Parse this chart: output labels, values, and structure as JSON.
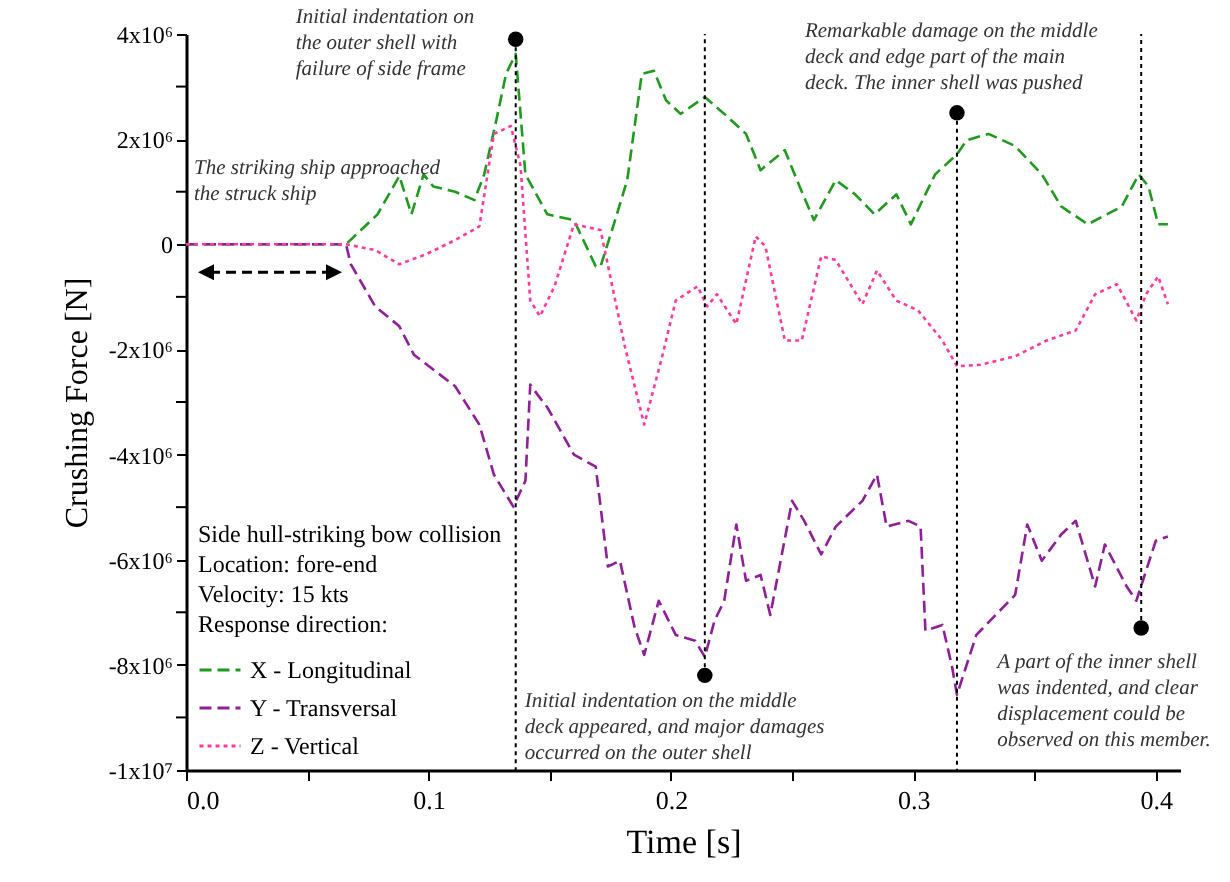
{
  "chart_data": {
    "type": "line",
    "xlabel": "Time [s]",
    "ylabel": "Crushing Force [N]",
    "legend_title": "Side hull-striking bow collision\nLocation: fore-end\nVelocity: 15 kts\nResponse direction:",
    "legend": "bottom left",
    "xlim": [
      0,
      0.41
    ],
    "xticks": [
      {
        "value": 0,
        "label": "0.0"
      },
      {
        "value": 0.05,
        "label": null
      },
      0.1,
      {
        "value": 0.15,
        "label": null
      },
      0.2,
      {
        "value": 0.25,
        "label": null
      },
      0.3,
      {
        "value": 0.35,
        "label": null
      },
      0.4
    ],
    "ylim": [
      -10000000,
      4000000
    ],
    "yticks": [
      {
        "value": 4000000,
        "label": "4x10⁶"
      },
      {
        "value": 3000000,
        "label": null
      },
      {
        "value": 2000000,
        "label": "2x10⁶"
      },
      {
        "value": 1000000,
        "label": null
      },
      0,
      {
        "value": -1000000,
        "label": null
      },
      {
        "value": -2000000,
        "label": "-2x10⁶"
      },
      {
        "value": -3000000,
        "label": null
      },
      {
        "value": -4000000,
        "label": "-4x10⁶"
      },
      {
        "value": -5000000,
        "label": null
      },
      {
        "value": -6000000,
        "label": "-6x10⁶"
      },
      {
        "value": -7000000,
        "label": null
      },
      {
        "value": -8000000,
        "label": "-8x10⁶"
      },
      {
        "value": -9000000,
        "label": null
      },
      {
        "value": -10000000,
        "label": "-1x10⁷"
      }
    ],
    "series": [
      {
        "name": "X - Longitudinal",
        "color": "#1f9a1f",
        "line_style": "dashed",
        "x": [
          0,
          0.066,
          0.079,
          0.088,
          0.093,
          0.098,
          0.102,
          0.111,
          0.119,
          0.123,
          0.128,
          0.132,
          0.136,
          0.14,
          0.149,
          0.16,
          0.169,
          0.171,
          0.177,
          0.182,
          0.188,
          0.193,
          0.198,
          0.204,
          0.214,
          0.223,
          0.231,
          0.237,
          0.247,
          0.252,
          0.259,
          0.268,
          0.276,
          0.284,
          0.293,
          0.299,
          0.309,
          0.318,
          0.322,
          0.331,
          0.342,
          0.353,
          0.361,
          0.372,
          0.386,
          0.393,
          0.397,
          0.401,
          0.405
        ],
        "values": [
          0,
          0,
          570000,
          1300000,
          570000,
          1330000,
          1100000,
          1000000,
          840000,
          1330000,
          2360000,
          3240000,
          3620000,
          1330000,
          570000,
          460000,
          -420000,
          -420000,
          460000,
          1220000,
          3240000,
          3300000,
          2740000,
          2480000,
          2800000,
          2440000,
          2100000,
          1410000,
          1790000,
          1220000,
          460000,
          1220000,
          950000,
          570000,
          950000,
          380000,
          1330000,
          1710000,
          1980000,
          2100000,
          1870000,
          1330000,
          720000,
          380000,
          720000,
          1330000,
          1100000,
          380000,
          380000
        ]
      },
      {
        "name": "Y - Transversal",
        "color": "#8e1f98",
        "line_style": "dashed",
        "x": [
          0,
          0.066,
          0.068,
          0.078,
          0.088,
          0.094,
          0.111,
          0.121,
          0.127,
          0.135,
          0.14,
          0.142,
          0.145,
          0.149,
          0.16,
          0.169,
          0.174,
          0.179,
          0.185,
          0.189,
          0.195,
          0.202,
          0.21,
          0.214,
          0.218,
          0.222,
          0.227,
          0.231,
          0.237,
          0.241,
          0.25,
          0.255,
          0.262,
          0.268,
          0.279,
          0.285,
          0.289,
          0.298,
          0.303,
          0.305,
          0.312,
          0.316,
          0.318,
          0.326,
          0.334,
          0.342,
          0.347,
          0.353,
          0.361,
          0.367,
          0.375,
          0.379,
          0.388,
          0.392,
          0.396,
          0.4,
          0.405
        ],
        "values": [
          0,
          0,
          -380000,
          -1180000,
          -1560000,
          -2100000,
          -2700000,
          -3430000,
          -4380000,
          -4990000,
          -4500000,
          -2670000,
          -2860000,
          -3100000,
          -4000000,
          -4230000,
          -6130000,
          -6020000,
          -7280000,
          -7810000,
          -6780000,
          -7430000,
          -7540000,
          -7850000,
          -7160000,
          -6780000,
          -5330000,
          -6400000,
          -6290000,
          -7050000,
          -4880000,
          -5260000,
          -5900000,
          -5370000,
          -4880000,
          -4380000,
          -5370000,
          -5260000,
          -5370000,
          -7350000,
          -7240000,
          -8040000,
          -8570000,
          -7430000,
          -7050000,
          -6670000,
          -5330000,
          -6020000,
          -5520000,
          -5260000,
          -6510000,
          -5710000,
          -6510000,
          -6780000,
          -6210000,
          -5640000,
          -5560000
        ]
      },
      {
        "name": "Z - Vertical",
        "color": "#ff3c9e",
        "line_style": "dotted",
        "x": [
          0,
          0.066,
          0.078,
          0.088,
          0.099,
          0.111,
          0.121,
          0.127,
          0.134,
          0.138,
          0.142,
          0.146,
          0.152,
          0.16,
          0.171,
          0.181,
          0.189,
          0.196,
          0.202,
          0.211,
          0.215,
          0.219,
          0.227,
          0.235,
          0.239,
          0.247,
          0.254,
          0.262,
          0.268,
          0.279,
          0.285,
          0.293,
          0.302,
          0.312,
          0.318,
          0.328,
          0.342,
          0.355,
          0.367,
          0.375,
          0.384,
          0.392,
          0.396,
          0.401,
          0.405
        ],
        "values": [
          0,
          0,
          -110000,
          -380000,
          -190000,
          80000,
          340000,
          2100000,
          2250000,
          1490000,
          -1070000,
          -1370000,
          -800000,
          380000,
          270000,
          -1940000,
          -3430000,
          -2210000,
          -1070000,
          -800000,
          -1180000,
          -950000,
          -1520000,
          150000,
          -40000,
          -1830000,
          -1830000,
          -230000,
          -300000,
          -1140000,
          -500000,
          -1070000,
          -1260000,
          -1830000,
          -2320000,
          -2290000,
          -2130000,
          -1830000,
          -1640000,
          -950000,
          -760000,
          -1450000,
          -950000,
          -610000,
          -1140000
        ]
      }
    ],
    "ref_lines": [
      {
        "axis": "x",
        "value": 0.136,
        "color": "#000000",
        "line_style": "dotted"
      },
      {
        "axis": "x",
        "value": 0.214,
        "color": "#000000",
        "line_style": "dotted"
      },
      {
        "axis": "x",
        "value": 0.318,
        "color": "#000000",
        "line_style": "dotted"
      },
      {
        "axis": "x",
        "value": 0.394,
        "color": "#000000",
        "line_style": "dotted"
      }
    ],
    "annotations": [
      "The striking ship approached\nthe struck ship",
      {
        "text": "Initial indentation on\nthe outer shell with\nfailure of side frame",
        "x": 0.136,
        "y": 3900000
      },
      {
        "text": "Initial indentation on the middle\ndeck appeared, and major damages\noccurred on the outer shell",
        "x": 0.214,
        "y": -8200000
      },
      {
        "text": "Remarkable damage on the middle\ndeck and edge part of the main\ndeck. The inner shell was pushed",
        "x": 0.318,
        "y": 2500000
      },
      {
        "text": "A part of the inner shell\nwas indented, and clear\ndisplacement could be\nobserved on this member.",
        "x": 0.394,
        "y": -7300000
      }
    ]
  }
}
